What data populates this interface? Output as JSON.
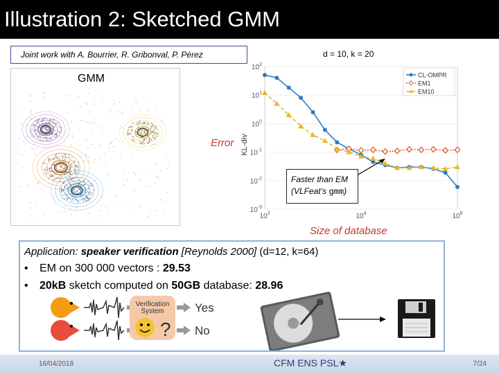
{
  "slide": {
    "title": "Illustration 2: Sketched GMM",
    "credit": "Joint work with A. Bourrier, R. Gribonval, P. Pérez",
    "gmm_label": "GMM",
    "error_label": "Error",
    "dk_label": "d = 10, k = 20",
    "size_label": "Size of database",
    "callout_line1": "Faster than EM",
    "callout_line2_a": "(VLFeat’s ",
    "callout_line2_code": "gmm",
    "callout_line2_b": ")",
    "app_prefix": "Application: ",
    "app_bold": "speaker verification",
    "app_ref": " [Reynolds 2000]",
    "app_params": " (d=12, k=64)",
    "bullet1_text": "EM on 300 000 vectors : ",
    "bullet1_value": "29.53",
    "bullet2_a": "20kB",
    "bullet2_b": " sketch computed on ",
    "bullet2_c": "50GB",
    "bullet2_d": " database: ",
    "bullet2_value": "28.96",
    "verif_line1": "Verification",
    "verif_line2": "System",
    "yes": "Yes",
    "no": "No",
    "question": "?",
    "date": "16/04/2018",
    "page": "7/24",
    "logo_text": "CFM   ENS   PSL★"
  },
  "colors": {
    "cl_ompr": "#2e7bbf",
    "em1": "#d9632a",
    "em10": "#e8b62a",
    "accent_red": "#c0392b",
    "box_border": "#8fb1d8"
  },
  "gmm_clusters": [
    {
      "color": "#9b59b6"
    },
    {
      "color": "#e8c34a"
    },
    {
      "color": "#e67e22"
    },
    {
      "color": "#3498db"
    }
  ],
  "chart_data": {
    "type": "line",
    "title": "",
    "xlabel": "",
    "ylabel": "KL-div",
    "xscale": "log",
    "yscale": "log",
    "xlim": [
      100,
      1000000
    ],
    "ylim": [
      0.001,
      100
    ],
    "xticks": [
      {
        "value": 100,
        "base": "10",
        "exp": "2"
      },
      {
        "value": 10000,
        "base": "10",
        "exp": "4"
      },
      {
        "value": 1000000,
        "base": "10",
        "exp": "6"
      }
    ],
    "yticks": [
      {
        "value": 100,
        "base": "10",
        "exp": "2"
      },
      {
        "value": 10,
        "base": "10",
        "exp": "1"
      },
      {
        "value": 1,
        "base": "10",
        "exp": "0"
      },
      {
        "value": 0.1,
        "base": "10",
        "exp": "-1"
      },
      {
        "value": 0.01,
        "base": "10",
        "exp": "-2"
      },
      {
        "value": 0.001,
        "base": "10",
        "exp": "-3"
      }
    ],
    "legend_position": "top-right",
    "x": [
      100,
      178,
      316,
      562,
      1000,
      1778,
      3162,
      5623,
      10000,
      17783,
      31623,
      56234,
      100000,
      177828,
      316228,
      562341,
      1000000
    ],
    "series": [
      {
        "name": "CL-OMPR",
        "marker": "circle",
        "values": [
          50,
          40,
          18,
          8,
          2.5,
          0.6,
          0.22,
          0.13,
          0.08,
          0.045,
          0.035,
          0.028,
          0.03,
          0.03,
          0.026,
          0.019,
          0.006
        ]
      },
      {
        "name": "EM1",
        "marker": "diamond",
        "values": [
          null,
          null,
          null,
          null,
          null,
          null,
          0.12,
          0.13,
          0.115,
          0.12,
          0.105,
          0.11,
          0.125,
          0.12,
          0.125,
          0.115,
          0.12
        ]
      },
      {
        "name": "EM10",
        "marker": "triangle",
        "values": [
          12,
          5,
          2,
          0.8,
          0.4,
          0.25,
          0.13,
          0.1,
          0.07,
          0.06,
          0.04,
          0.028,
          0.028,
          0.03,
          0.028,
          0.026,
          0.03
        ]
      }
    ]
  }
}
